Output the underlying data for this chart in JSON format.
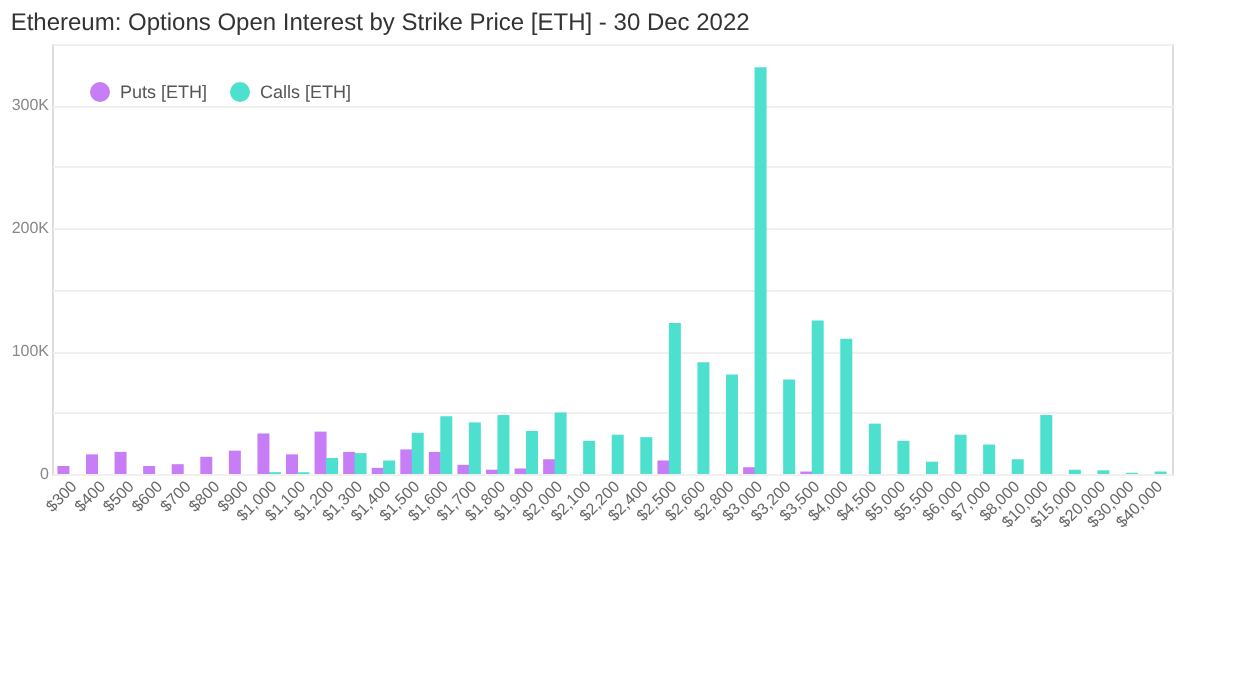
{
  "chart_data": {
    "type": "bar",
    "title": "Ethereum: Options Open Interest by Strike Price [ETH] - 30 Dec 2022",
    "categories": [
      "$300",
      "$400",
      "$500",
      "$600",
      "$700",
      "$800",
      "$900",
      "$1,000",
      "$1,100",
      "$1,200",
      "$1,300",
      "$1,400",
      "$1,500",
      "$1,600",
      "$1,700",
      "$1,800",
      "$1,900",
      "$2,000",
      "$2,100",
      "$2,200",
      "$2,400",
      "$2,500",
      "$2,600",
      "$2,800",
      "$3,000",
      "$3,200",
      "$3,500",
      "$4,000",
      "$4,500",
      "$5,000",
      "$5,500",
      "$6,000",
      "$7,000",
      "$8,000",
      "$10,000",
      "$15,000",
      "$20,000",
      "$30,000",
      "$40,000"
    ],
    "series": [
      {
        "name": "Puts [ETH]",
        "color": "#c77df5",
        "values": [
          6500,
          16000,
          18000,
          6500,
          8000,
          14000,
          19000,
          33000,
          16000,
          34500,
          18000,
          5000,
          20000,
          18000,
          7500,
          3500,
          4500,
          12000,
          null,
          null,
          null,
          11000,
          null,
          null,
          5500,
          null,
          2000,
          null,
          null,
          null,
          null,
          null,
          null,
          null,
          null,
          null,
          null,
          null,
          null
        ]
      },
      {
        "name": "Calls [ETH]",
        "color": "#4ee0cf",
        "values": [
          null,
          null,
          null,
          null,
          null,
          null,
          null,
          1500,
          1500,
          13000,
          17000,
          11000,
          33500,
          47000,
          42000,
          48000,
          35000,
          50000,
          27000,
          32000,
          30000,
          123000,
          91000,
          81000,
          331000,
          77000,
          125000,
          110000,
          41000,
          27000,
          10000,
          32000,
          24000,
          12000,
          48000,
          3500,
          3000,
          1000,
          2000
        ]
      }
    ],
    "ylim": [
      0,
      350000
    ],
    "yticks": [
      0,
      {
        "value": 50000,
        "label": null
      },
      {
        "value": 100000,
        "label": "100K"
      },
      {
        "value": 150000,
        "label": null
      },
      {
        "value": 200000,
        "label": "200K"
      },
      {
        "value": 250000,
        "label": null
      },
      {
        "value": 300000,
        "label": "300K"
      },
      {
        "value": 350000,
        "label": null
      }
    ],
    "grid": "y",
    "legend": "top left"
  }
}
